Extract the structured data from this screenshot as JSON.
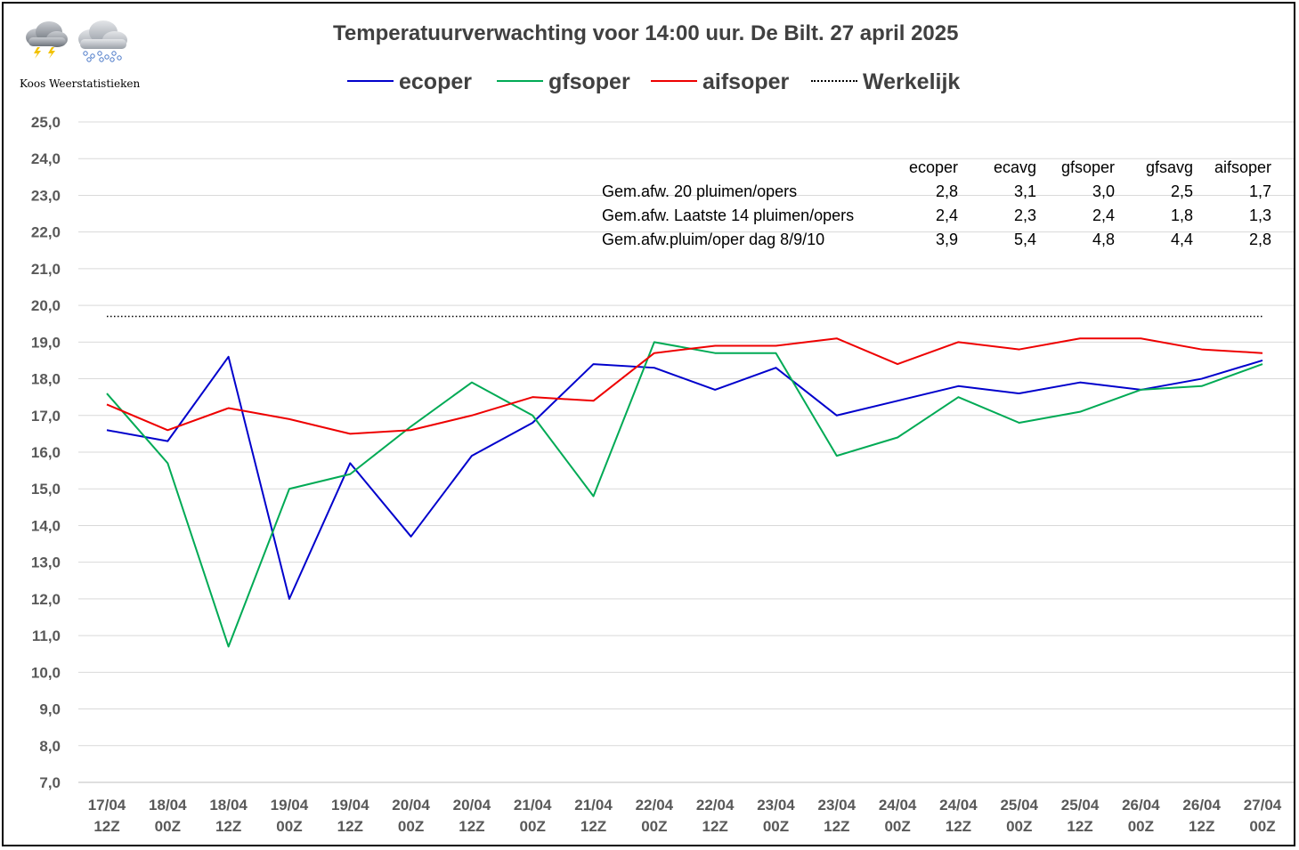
{
  "title": "Temperatuurverwachting voor 14:00 uur. De Bilt. 27 april 2025",
  "brand": "Koos Weerstatistieken",
  "icons": [
    "thunderstorm-cloud-icon",
    "snow-cloud-icon"
  ],
  "legend": [
    {
      "label": "ecoper",
      "color": "#0000CC",
      "style": "solid"
    },
    {
      "label": "gfsoper",
      "color": "#00AA55",
      "style": "solid"
    },
    {
      "label": "aifsoper",
      "color": "#EE0000",
      "style": "solid"
    },
    {
      "label": "Werkelijk",
      "color": "#000000",
      "style": "dotted"
    }
  ],
  "stats_table": {
    "headers": [
      "ecoper",
      "ecavg",
      "gfsoper",
      "gfsavg",
      "aifsoper"
    ],
    "rows": [
      {
        "label": "Gem.afw. 20 pluimen/opers",
        "values": [
          "2,8",
          "3,1",
          "3,0",
          "2,5",
          "1,7"
        ]
      },
      {
        "label": "Gem.afw. Laatste 14 pluimen/opers",
        "values": [
          "2,4",
          "2,3",
          "2,4",
          "1,8",
          "1,3"
        ]
      },
      {
        "label": "Gem.afw.pluim/oper dag 8/9/10",
        "values": [
          "3,9",
          "5,4",
          "4,8",
          "4,4",
          "2,8"
        ]
      }
    ]
  },
  "chart_data": {
    "type": "line",
    "title": "Temperatuurverwachting voor 14:00 uur. De Bilt. 27 april 2025",
    "xlabel": "",
    "ylabel": "",
    "ylim": [
      7.0,
      25.0
    ],
    "y_ticks": [
      "7,0",
      "8,0",
      "9,0",
      "10,0",
      "11,0",
      "12,0",
      "13,0",
      "14,0",
      "15,0",
      "16,0",
      "17,0",
      "18,0",
      "19,0",
      "20,0",
      "21,0",
      "22,0",
      "23,0",
      "24,0",
      "25,0"
    ],
    "y_tick_values": [
      7,
      8,
      9,
      10,
      11,
      12,
      13,
      14,
      15,
      16,
      17,
      18,
      19,
      20,
      21,
      22,
      23,
      24,
      25
    ],
    "grid": true,
    "categories": [
      [
        "17/04",
        "12Z"
      ],
      [
        "18/04",
        "00Z"
      ],
      [
        "18/04",
        "12Z"
      ],
      [
        "19/04",
        "00Z"
      ],
      [
        "19/04",
        "12Z"
      ],
      [
        "20/04",
        "00Z"
      ],
      [
        "20/04",
        "12Z"
      ],
      [
        "21/04",
        "00Z"
      ],
      [
        "21/04",
        "12Z"
      ],
      [
        "22/04",
        "00Z"
      ],
      [
        "22/04",
        "12Z"
      ],
      [
        "23/04",
        "00Z"
      ],
      [
        "23/04",
        "12Z"
      ],
      [
        "24/04",
        "00Z"
      ],
      [
        "24/04",
        "12Z"
      ],
      [
        "25/04",
        "00Z"
      ],
      [
        "25/04",
        "12Z"
      ],
      [
        "26/04",
        "00Z"
      ],
      [
        "26/04",
        "12Z"
      ],
      [
        "27/04",
        "00Z"
      ]
    ],
    "series": [
      {
        "name": "ecoper",
        "color": "#0000CC",
        "values": [
          16.6,
          16.3,
          18.6,
          12.0,
          15.7,
          13.7,
          15.9,
          16.8,
          18.4,
          18.3,
          17.7,
          18.3,
          17.0,
          17.4,
          17.8,
          17.6,
          17.9,
          17.7,
          18.0,
          18.5
        ]
      },
      {
        "name": "gfsoper",
        "color": "#00AA55",
        "values": [
          17.6,
          15.7,
          10.7,
          15.0,
          15.4,
          16.7,
          17.9,
          17.0,
          14.8,
          19.0,
          18.7,
          18.7,
          15.9,
          16.4,
          17.5,
          16.8,
          17.1,
          17.7,
          17.8,
          18.4
        ]
      },
      {
        "name": "aifsoper",
        "color": "#EE0000",
        "values": [
          17.3,
          16.6,
          17.2,
          16.9,
          16.5,
          16.6,
          17.0,
          17.5,
          17.4,
          18.7,
          18.9,
          18.9,
          19.1,
          18.4,
          19.0,
          18.8,
          19.1,
          19.1,
          18.8,
          18.7
        ]
      },
      {
        "name": "Werkelijk",
        "color": "#000000",
        "style": "dotted",
        "values": [
          19.7,
          19.7,
          19.7,
          19.7,
          19.7,
          19.7,
          19.7,
          19.7,
          19.7,
          19.7,
          19.7,
          19.7,
          19.7,
          19.7,
          19.7,
          19.7,
          19.7,
          19.7,
          19.7,
          19.7
        ]
      }
    ]
  }
}
